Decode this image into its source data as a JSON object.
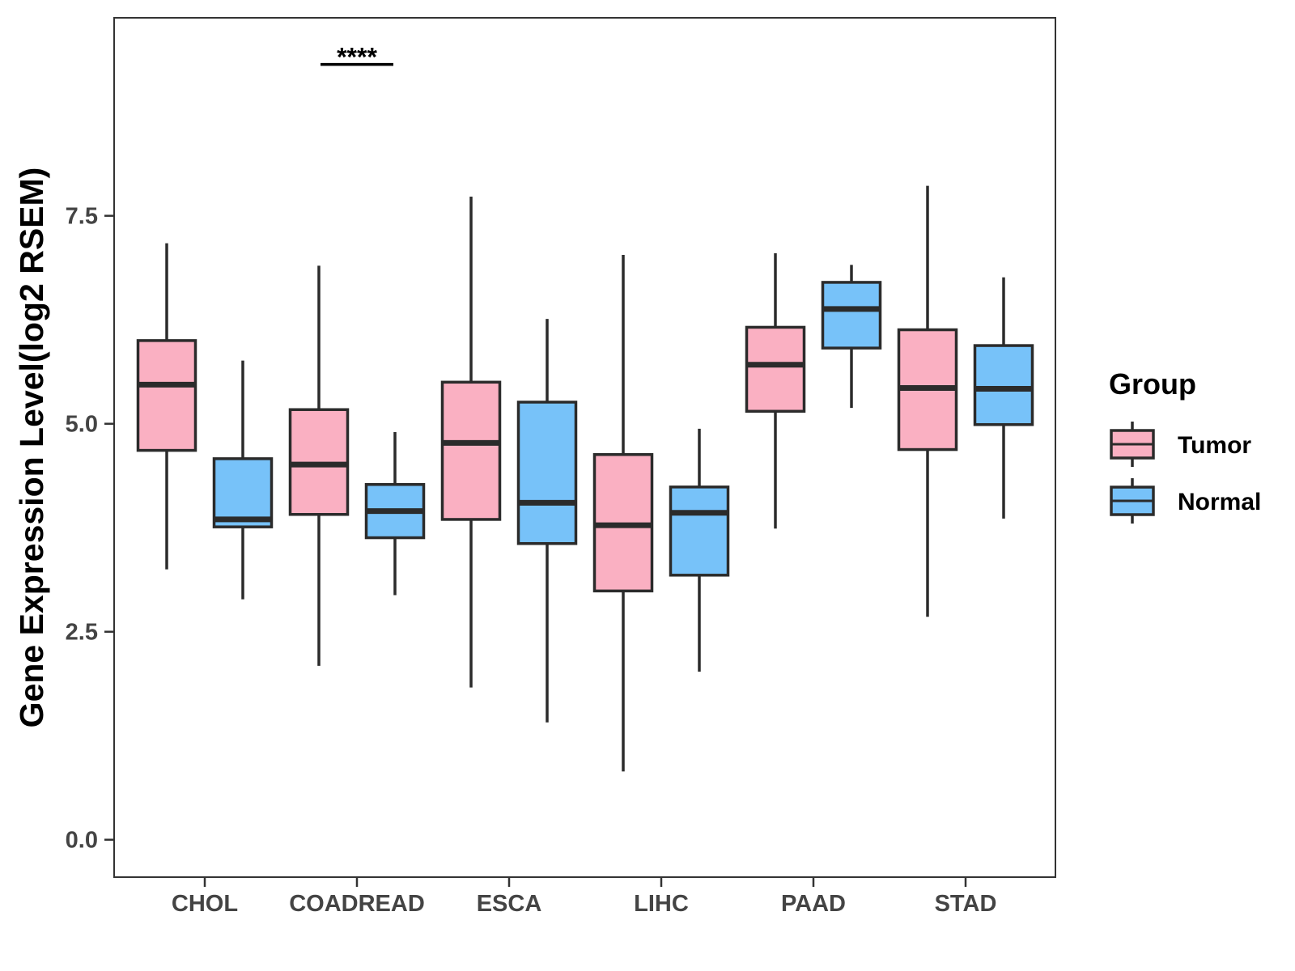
{
  "chart_data": {
    "type": "boxplot",
    "title": "",
    "xlabel": "",
    "ylabel": "Gene Expression Level(log2 RSEM)",
    "ylim": [
      -0.45,
      9.88
    ],
    "y_ticks": [
      0.0,
      2.5,
      5.0,
      7.5
    ],
    "y_tick_labels": [
      "0.0",
      "2.5",
      "5.0",
      "7.5"
    ],
    "grid": false,
    "categories": [
      "CHOL",
      "COADREAD",
      "ESCA",
      "LIHC",
      "PAAD",
      "STAD"
    ],
    "legend": {
      "title": "Group",
      "position": "right",
      "entries": [
        "Tumor",
        "Normal"
      ]
    },
    "series": [
      {
        "name": "Tumor",
        "color": "#FAB0C2",
        "boxes": [
          {
            "category": "CHOL",
            "min": 3.25,
            "q1": 4.68,
            "median": 5.47,
            "q3": 6.0,
            "max": 7.17
          },
          {
            "category": "COADREAD",
            "min": 2.09,
            "q1": 3.91,
            "median": 4.51,
            "q3": 5.17,
            "max": 6.9
          },
          {
            "category": "ESCA",
            "min": 1.83,
            "q1": 3.85,
            "median": 4.77,
            "q3": 5.5,
            "max": 7.73
          },
          {
            "category": "LIHC",
            "min": 0.82,
            "q1": 2.99,
            "median": 3.78,
            "q3": 4.63,
            "max": 7.03
          },
          {
            "category": "PAAD",
            "min": 3.74,
            "q1": 5.15,
            "median": 5.71,
            "q3": 6.16,
            "max": 7.05
          },
          {
            "category": "STAD",
            "min": 2.68,
            "q1": 4.69,
            "median": 5.43,
            "q3": 6.13,
            "max": 7.86
          }
        ]
      },
      {
        "name": "Normal",
        "color": "#77C2F9",
        "boxes": [
          {
            "category": "CHOL",
            "min": 2.89,
            "q1": 3.76,
            "median": 3.85,
            "q3": 4.58,
            "max": 5.76
          },
          {
            "category": "COADREAD",
            "min": 2.94,
            "q1": 3.63,
            "median": 3.95,
            "q3": 4.27,
            "max": 4.9
          },
          {
            "category": "ESCA",
            "min": 1.41,
            "q1": 3.56,
            "median": 4.05,
            "q3": 5.26,
            "max": 6.26
          },
          {
            "category": "LIHC",
            "min": 2.02,
            "q1": 3.18,
            "median": 3.93,
            "q3": 4.24,
            "max": 4.94
          },
          {
            "category": "PAAD",
            "min": 5.19,
            "q1": 5.91,
            "median": 6.38,
            "q3": 6.7,
            "max": 6.91
          },
          {
            "category": "STAD",
            "min": 3.86,
            "q1": 4.99,
            "median": 5.42,
            "q3": 5.94,
            "max": 6.76
          }
        ]
      }
    ],
    "annotations": [
      {
        "category": "COADREAD",
        "text": "****",
        "y": 9.32
      }
    ]
  }
}
